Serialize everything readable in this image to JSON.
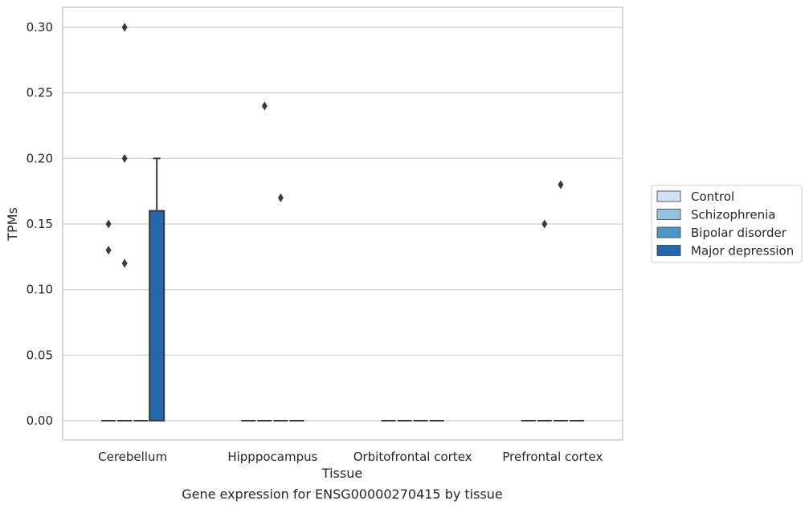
{
  "chart_data": {
    "type": "box",
    "xlabel": "Tissue",
    "ylabel": "TPMs",
    "caption": "Gene expression for ENSG00000270415 by tissue",
    "ylim": [
      -0.015,
      0.315
    ],
    "yticks": [
      "0.00",
      "0.05",
      "0.10",
      "0.15",
      "0.20",
      "0.25",
      "0.30"
    ],
    "grid": "horizontal",
    "legend_placement": "right",
    "categories": [
      "Cerebellum",
      "Hipppocampus",
      "Orbitofrontal cortex",
      "Prefrontal cortex"
    ],
    "series": [
      {
        "name": "Control",
        "color": "#d0e1f2",
        "boxes": [
          {
            "q1": 0,
            "median": 0,
            "q3": 0,
            "whisker_low": 0,
            "whisker_high": 0,
            "outliers": [
              0.15,
              0.13
            ]
          },
          {
            "q1": 0,
            "median": 0,
            "q3": 0,
            "whisker_low": 0,
            "whisker_high": 0,
            "outliers": []
          },
          {
            "q1": 0,
            "median": 0,
            "q3": 0,
            "whisker_low": 0,
            "whisker_high": 0,
            "outliers": []
          },
          {
            "q1": 0,
            "median": 0,
            "q3": 0,
            "whisker_low": 0,
            "whisker_high": 0,
            "outliers": []
          }
        ]
      },
      {
        "name": "Schizophrenia",
        "color": "#94c4df",
        "boxes": [
          {
            "q1": 0,
            "median": 0,
            "q3": 0,
            "whisker_low": 0,
            "whisker_high": 0,
            "outliers": [
              0.3,
              0.2,
              0.12
            ]
          },
          {
            "q1": 0,
            "median": 0,
            "q3": 0,
            "whisker_low": 0,
            "whisker_high": 0,
            "outliers": [
              0.24
            ]
          },
          {
            "q1": 0,
            "median": 0,
            "q3": 0,
            "whisker_low": 0,
            "whisker_high": 0,
            "outliers": []
          },
          {
            "q1": 0,
            "median": 0,
            "q3": 0,
            "whisker_low": 0,
            "whisker_high": 0,
            "outliers": [
              0.15
            ]
          }
        ]
      },
      {
        "name": "Bipolar disorder",
        "color": "#4a98c9",
        "boxes": [
          {
            "q1": 0,
            "median": 0,
            "q3": 0,
            "whisker_low": 0,
            "whisker_high": 0,
            "outliers": []
          },
          {
            "q1": 0,
            "median": 0,
            "q3": 0,
            "whisker_low": 0,
            "whisker_high": 0,
            "outliers": [
              0.17
            ]
          },
          {
            "q1": 0,
            "median": 0,
            "q3": 0,
            "whisker_low": 0,
            "whisker_high": 0,
            "outliers": []
          },
          {
            "q1": 0,
            "median": 0,
            "q3": 0,
            "whisker_low": 0,
            "whisker_high": 0,
            "outliers": [
              0.18
            ]
          }
        ]
      },
      {
        "name": "Major depression",
        "color": "#2367ac",
        "boxes": [
          {
            "q1": 0,
            "median": 0,
            "q3": 0.16,
            "whisker_low": 0,
            "whisker_high": 0.2,
            "outliers": []
          },
          {
            "q1": 0,
            "median": 0,
            "q3": 0,
            "whisker_low": 0,
            "whisker_high": 0,
            "outliers": []
          },
          {
            "q1": 0,
            "median": 0,
            "q3": 0,
            "whisker_low": 0,
            "whisker_high": 0,
            "outliers": []
          },
          {
            "q1": 0,
            "median": 0,
            "q3": 0,
            "whisker_low": 0,
            "whisker_high": 0,
            "outliers": []
          }
        ]
      }
    ]
  }
}
